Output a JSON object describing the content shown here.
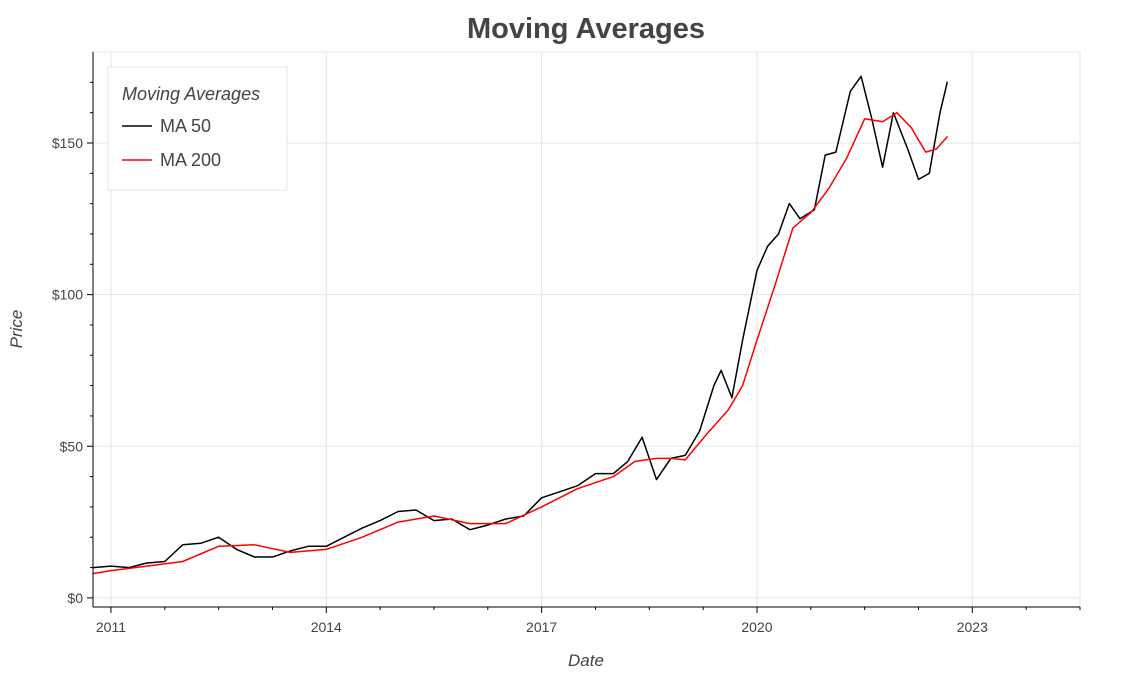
{
  "chart_data": {
    "type": "line",
    "title": "Moving Averages",
    "xlabel": "Date",
    "ylabel": "Price",
    "xlim": [
      2010.75,
      2024.5
    ],
    "ylim": [
      -3,
      180
    ],
    "x_ticks": [
      {
        "value": 2011,
        "label": "2011"
      },
      {
        "value": 2014,
        "label": "2014"
      },
      {
        "value": 2017,
        "label": "2017"
      },
      {
        "value": 2020,
        "label": "2020"
      },
      {
        "value": 2023,
        "label": "2023"
      }
    ],
    "y_ticks": [
      {
        "value": 0,
        "label": "$0"
      },
      {
        "value": 50,
        "label": "$50"
      },
      {
        "value": 100,
        "label": "$100"
      },
      {
        "value": 150,
        "label": "$150"
      }
    ],
    "grid": true,
    "legend": {
      "title": "Moving Averages",
      "position": "top-left"
    },
    "series": [
      {
        "name": "MA 50",
        "color": "#000000",
        "x": [
          2010.75,
          2011.0,
          2011.25,
          2011.5,
          2011.75,
          2012.0,
          2012.25,
          2012.5,
          2012.75,
          2013.0,
          2013.25,
          2013.5,
          2013.75,
          2014.0,
          2014.25,
          2014.5,
          2014.75,
          2015.0,
          2015.25,
          2015.5,
          2015.75,
          2016.0,
          2016.25,
          2016.5,
          2016.75,
          2017.0,
          2017.25,
          2017.5,
          2017.75,
          2018.0,
          2018.2,
          2018.4,
          2018.6,
          2018.8,
          2019.0,
          2019.2,
          2019.4,
          2019.5,
          2019.65,
          2019.8,
          2020.0,
          2020.15,
          2020.3,
          2020.45,
          2020.6,
          2020.8,
          2020.95,
          2021.1,
          2021.3,
          2021.45,
          2021.6,
          2021.75,
          2021.9,
          2022.1,
          2022.25,
          2022.4,
          2022.55,
          2022.65
        ],
        "values": [
          10,
          10.5,
          10,
          11.5,
          12,
          17.5,
          18,
          20,
          16,
          13.5,
          13.5,
          15.5,
          17,
          17,
          20,
          23,
          25.5,
          28.5,
          29,
          25.5,
          26,
          22.5,
          24,
          26,
          27,
          33,
          35,
          37,
          41,
          41,
          45,
          53,
          39,
          46,
          47,
          55,
          70,
          75,
          66,
          85,
          108,
          116,
          120,
          130,
          125,
          128,
          146,
          147,
          167,
          172,
          158,
          142,
          160,
          148,
          138,
          140,
          160,
          170
        ]
      },
      {
        "name": "MA 200",
        "color": "#ff0000",
        "x": [
          2010.75,
          2011.0,
          2011.5,
          2012.0,
          2012.5,
          2013.0,
          2013.5,
          2014.0,
          2014.5,
          2015.0,
          2015.5,
          2016.0,
          2016.5,
          2017.0,
          2017.5,
          2018.0,
          2018.3,
          2018.6,
          2018.8,
          2019.0,
          2019.3,
          2019.6,
          2019.8,
          2020.0,
          2020.25,
          2020.5,
          2020.75,
          2021.0,
          2021.25,
          2021.5,
          2021.75,
          2021.95,
          2022.15,
          2022.35,
          2022.5,
          2022.65
        ],
        "values": [
          8,
          9,
          10.5,
          12,
          17,
          17.5,
          15,
          16,
          20,
          25,
          27,
          24.5,
          24.5,
          30,
          36,
          40,
          45,
          46,
          46,
          45.5,
          54,
          62,
          70,
          85,
          103,
          122,
          127,
          135,
          145,
          158,
          157,
          160,
          155,
          147,
          148,
          152
        ]
      }
    ]
  }
}
